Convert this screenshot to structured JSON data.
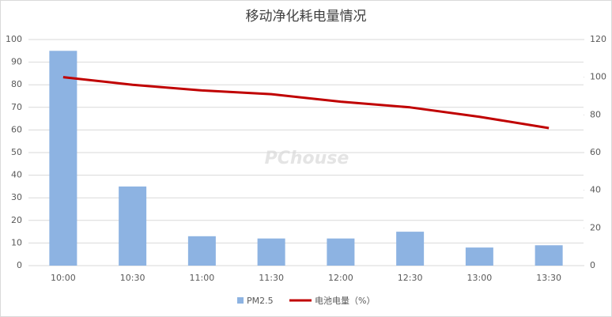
{
  "chart_data": {
    "type": "bar",
    "title": "移动净化耗电量情况",
    "watermark": "PChouse",
    "categories": [
      "10:00",
      "10:30",
      "11:00",
      "11:30",
      "12:00",
      "12:30",
      "13:00",
      "13:30"
    ],
    "series": [
      {
        "name": "PM2.5",
        "type": "bar",
        "color": "#8db3e2",
        "values": [
          95,
          35,
          13,
          12,
          12,
          15,
          8,
          9
        ]
      },
      {
        "name": "电池电量（%）",
        "type": "line",
        "axis": "y2",
        "color": "#c00000",
        "values": [
          100,
          96,
          93,
          91,
          87,
          84,
          79,
          73
        ]
      }
    ],
    "ylim": [
      0,
      100
    ],
    "yticks": [
      0,
      10,
      20,
      30,
      40,
      50,
      60,
      70,
      80,
      90,
      100
    ],
    "y2lim": [
      0,
      120
    ],
    "y2ticks": [
      0,
      20,
      40,
      60,
      80,
      100,
      120
    ],
    "grid": true,
    "legend": "bottom"
  }
}
